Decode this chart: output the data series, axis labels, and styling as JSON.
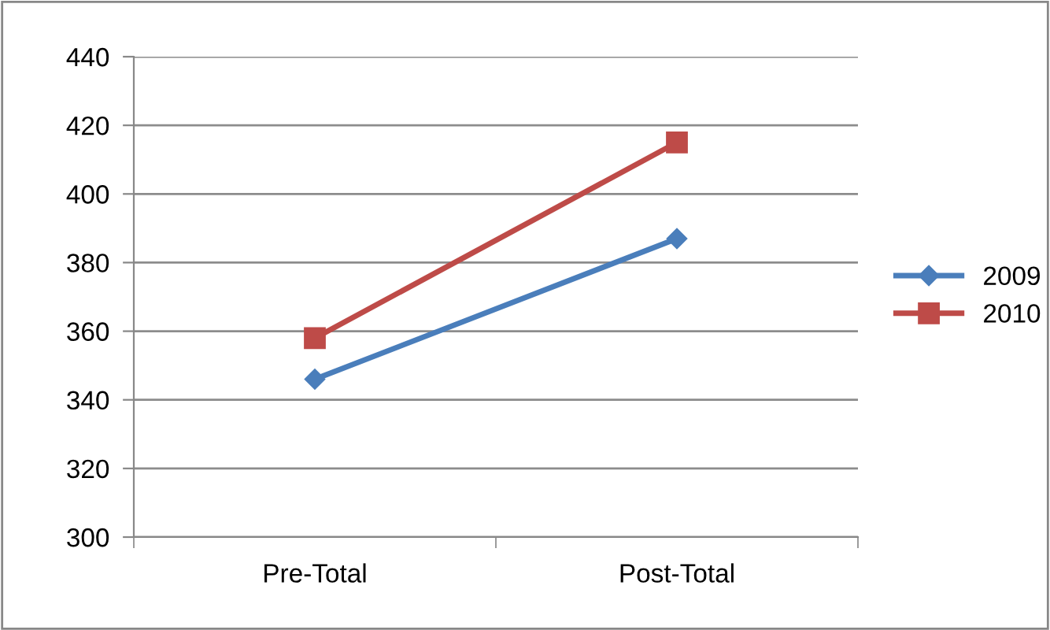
{
  "chart_data": {
    "type": "line",
    "categories": [
      "Pre-Total",
      "Post-Total"
    ],
    "series": [
      {
        "name": "2009",
        "color": "#4a7ebb",
        "values": [
          346,
          387
        ],
        "marker": "diamond"
      },
      {
        "name": "2010",
        "color": "#be4b48",
        "values": [
          358,
          415
        ],
        "marker": "square"
      }
    ],
    "ylim": [
      300,
      440
    ],
    "yticks": [
      300,
      320,
      340,
      360,
      380,
      400,
      420,
      440
    ],
    "grid": "y",
    "legend": "right"
  }
}
